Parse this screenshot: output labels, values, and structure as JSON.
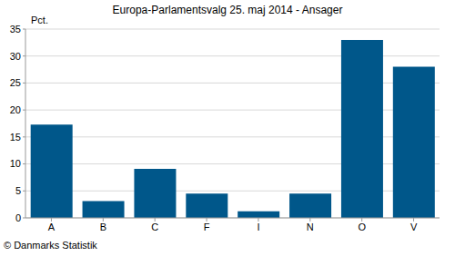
{
  "chart_data": {
    "type": "bar",
    "title": "Europa-Parlamentsvalg 25. maj 2014 - Ansager",
    "y_label": "Pct.",
    "source": "© Danmarks Statistik",
    "categories": [
      "A",
      "B",
      "C",
      "F",
      "I",
      "N",
      "O",
      "V"
    ],
    "values": [
      17.3,
      3.1,
      9.1,
      4.5,
      1.2,
      4.5,
      33.0,
      28.0
    ],
    "color": "#00578a",
    "ylim": [
      0,
      35
    ],
    "yticks": [
      0,
      5,
      10,
      15,
      20,
      25,
      30,
      35
    ],
    "grid": true
  }
}
